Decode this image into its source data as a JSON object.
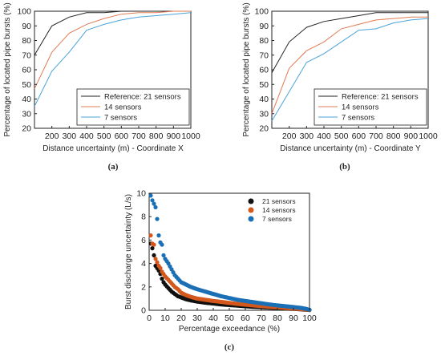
{
  "colors": {
    "ref": "#222222",
    "s14": "#e07b54",
    "s7": "#4aa3d8",
    "dot21": "#111111",
    "dot14": "#d4571c",
    "dot7": "#1a6fb5"
  },
  "chart_data": [
    {
      "type": "line",
      "panel_label": "(a)",
      "xlabel": "Distance uncertainty (m) - Coordinate X",
      "ylabel": "Percentage of located pipe bursts (%)",
      "xlim": [
        100,
        1000
      ],
      "ylim": [
        20,
        100
      ],
      "x_ticks": [
        "200",
        "300",
        "400",
        "500",
        "600",
        "700",
        "800",
        "900",
        "1000"
      ],
      "y_ticks": [
        "20",
        "30",
        "40",
        "50",
        "60",
        "70",
        "80",
        "90",
        "100"
      ],
      "grid": false,
      "legend_position": "bottom-right",
      "x": [
        100,
        200,
        300,
        400,
        500,
        600,
        700,
        800,
        900,
        1000
      ],
      "series": [
        {
          "name": "Reference: 21 sensors",
          "values": [
            70,
            90,
            96,
            99,
            99,
            100,
            100,
            100,
            100,
            100
          ]
        },
        {
          "name": "14 sensors",
          "values": [
            47,
            72,
            85,
            91,
            95,
            98,
            99,
            99,
            100,
            100
          ]
        },
        {
          "name": "7 sensors",
          "values": [
            35,
            59,
            72,
            87,
            91,
            94,
            96,
            97,
            98,
            99
          ]
        }
      ]
    },
    {
      "type": "line",
      "panel_label": "(b)",
      "xlabel": "Distance uncertainty (m) - Coordinate Y",
      "ylabel": "Percentage of located pipe bursts (%)",
      "xlim": [
        100,
        1000
      ],
      "ylim": [
        20,
        100
      ],
      "x_ticks": [
        "200",
        "300",
        "400",
        "500",
        "600",
        "700",
        "800",
        "900",
        "1000"
      ],
      "y_ticks": [
        "20",
        "30",
        "40",
        "50",
        "60",
        "70",
        "80",
        "90",
        "100"
      ],
      "grid": false,
      "legend_position": "bottom-right",
      "x": [
        100,
        200,
        300,
        400,
        500,
        600,
        700,
        800,
        900,
        1000
      ],
      "series": [
        {
          "name": "Reference: 21 sensors",
          "values": [
            58,
            79,
            89,
            93,
            95,
            97,
            99,
            99,
            99,
            99
          ]
        },
        {
          "name": "14 sensors",
          "values": [
            30,
            61,
            73,
            79,
            88,
            91,
            94,
            95,
            96,
            96
          ]
        },
        {
          "name": "7 sensors",
          "values": [
            25,
            45,
            65,
            71,
            79,
            87,
            88,
            92,
            94,
            95
          ]
        }
      ]
    },
    {
      "type": "scatter",
      "panel_label": "(c)",
      "xlabel": "Percentage exceedance (%)",
      "ylabel": "Burst discharge uncertainty (L/s)",
      "xlim": [
        0,
        100
      ],
      "ylim": [
        0,
        10
      ],
      "x_ticks": [
        "0",
        "10",
        "20",
        "30",
        "40",
        "50",
        "60",
        "70",
        "80",
        "90",
        "100"
      ],
      "y_ticks": [
        "0",
        "2",
        "4",
        "6",
        "8",
        "10"
      ],
      "grid": false,
      "legend_position": "top-right",
      "series": [
        {
          "name": "21 sensors",
          "x": [
            1,
            2,
            3,
            4,
            5,
            6,
            7,
            8,
            9,
            10,
            12,
            14,
            16,
            18,
            20,
            23,
            26,
            30,
            35,
            40,
            45,
            50,
            55,
            60,
            65,
            70,
            75,
            80,
            85,
            90,
            95,
            98,
            100
          ],
          "y": [
            5.7,
            5.3,
            4.7,
            3.8,
            3.6,
            3.4,
            3.1,
            2.7,
            2.4,
            2.2,
            1.9,
            1.6,
            1.4,
            1.2,
            1.1,
            0.95,
            0.85,
            0.75,
            0.65,
            0.58,
            0.5,
            0.45,
            0.4,
            0.35,
            0.3,
            0.27,
            0.23,
            0.2,
            0.16,
            0.12,
            0.08,
            0.05,
            0.03
          ]
        },
        {
          "name": "14 sensors",
          "x": [
            1,
            2,
            3,
            4,
            5,
            6,
            7,
            8,
            9,
            10,
            12,
            14,
            16,
            18,
            20,
            23,
            26,
            30,
            35,
            40,
            45,
            50,
            55,
            60,
            65,
            70,
            75,
            80,
            85,
            90,
            95,
            98,
            100
          ],
          "y": [
            6.4,
            5.7,
            5.6,
            4.4,
            4.1,
            3.8,
            3.6,
            3.3,
            3.1,
            2.9,
            2.6,
            2.3,
            2.0,
            1.8,
            1.5,
            1.3,
            1.15,
            1.0,
            0.9,
            0.8,
            0.72,
            0.63,
            0.55,
            0.48,
            0.42,
            0.36,
            0.3,
            0.25,
            0.2,
            0.15,
            0.1,
            0.06,
            0.03
          ]
        },
        {
          "name": "7 sensors",
          "x": [
            1,
            2,
            3,
            4,
            5,
            6,
            7,
            8,
            9,
            10,
            12,
            14,
            16,
            18,
            20,
            23,
            26,
            30,
            35,
            40,
            45,
            50,
            55,
            60,
            65,
            70,
            75,
            80,
            85,
            90,
            95,
            98,
            100
          ],
          "y": [
            9.8,
            9.4,
            9.1,
            8.8,
            7.8,
            6.4,
            5.8,
            5.6,
            4.7,
            4.4,
            4.0,
            3.5,
            3.0,
            2.7,
            2.4,
            2.2,
            2.0,
            1.8,
            1.6,
            1.4,
            1.2,
            1.05,
            0.9,
            0.8,
            0.7,
            0.6,
            0.5,
            0.42,
            0.35,
            0.28,
            0.2,
            0.12,
            0.05
          ]
        }
      ]
    }
  ]
}
